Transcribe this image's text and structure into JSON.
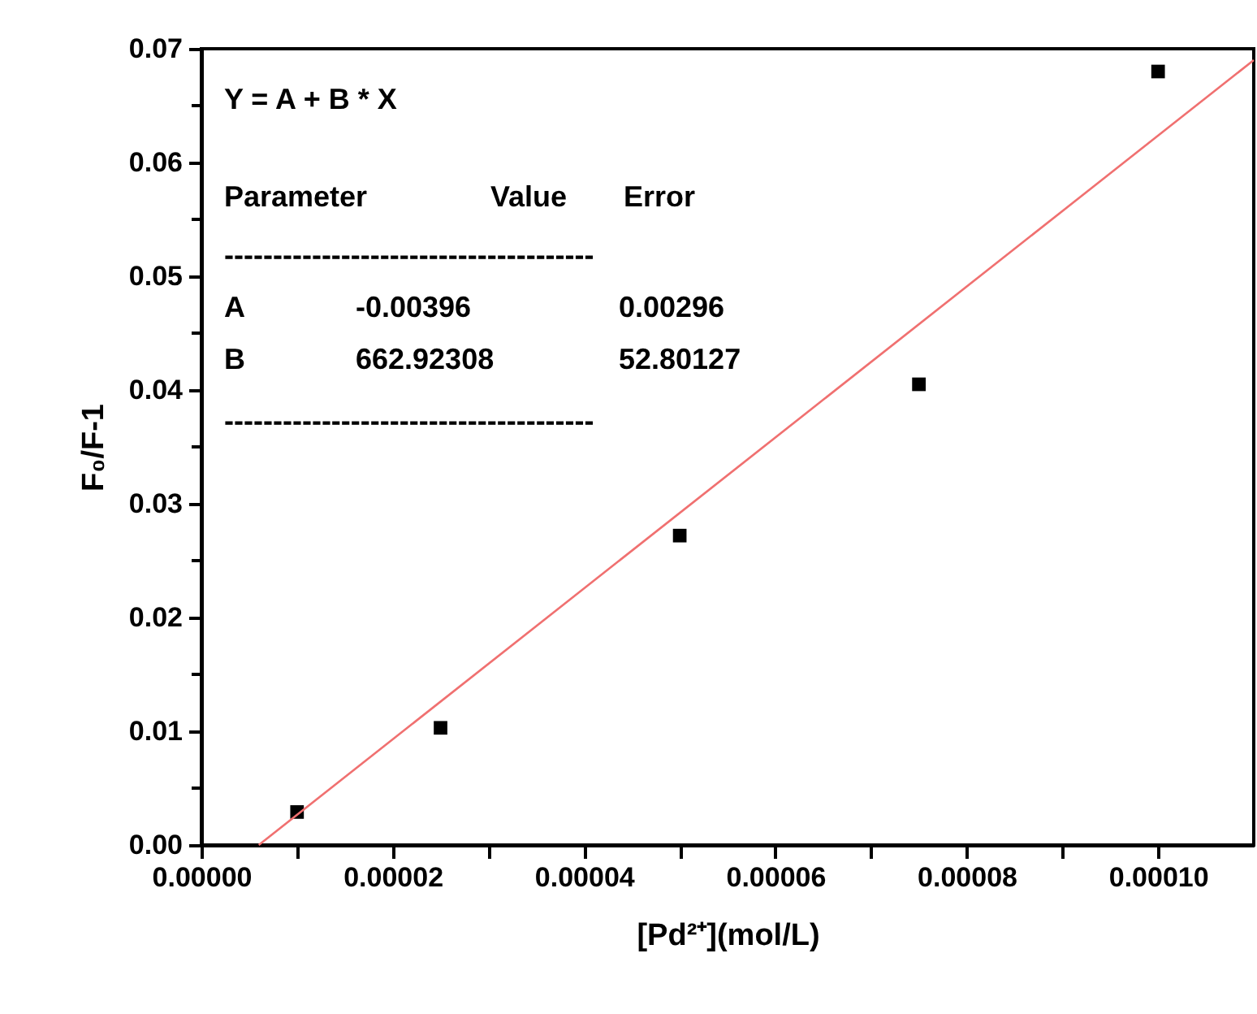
{
  "chart_data": {
    "type": "scatter",
    "xlabel": "[Pd²⁺](mol/L)",
    "ylabel": "F₀/F-1",
    "x": [
      1e-05,
      2.5e-05,
      5e-05,
      7.5e-05,
      0.0001
    ],
    "series": [
      {
        "color": "#000000",
        "marker": "square",
        "values": [
          0.0029,
          0.0103,
          0.0272,
          0.0405,
          0.068
        ]
      },
      {
        "type": "line",
        "color": "#f07070",
        "x": [
          6e-06,
          0.00011
        ],
        "values": [
          0.0,
          0.069
        ],
        "line_style": "solid",
        "marker": "none"
      }
    ],
    "xlim": [
      0,
      0.00011
    ],
    "ylim": [
      0,
      0.07
    ],
    "xticks": [
      {
        "value": 0,
        "label": "0.00000"
      },
      {
        "value": 1e-05,
        "label": null
      },
      {
        "value": 2e-05,
        "label": "0.00002"
      },
      {
        "value": 3e-05,
        "label": null
      },
      {
        "value": 4e-05,
        "label": "0.00004"
      },
      {
        "value": 5e-05,
        "label": null
      },
      {
        "value": 6e-05,
        "label": "0.00006"
      },
      {
        "value": 7e-05,
        "label": null
      },
      {
        "value": 8e-05,
        "label": "0.00008"
      },
      {
        "value": 9e-05,
        "label": null
      },
      {
        "value": 0.0001,
        "label": "0.00010"
      }
    ],
    "yticks": [
      {
        "value": 0,
        "label": "0.00"
      },
      {
        "value": 0.005,
        "label": null
      },
      {
        "value": 0.01,
        "label": "0.01"
      },
      {
        "value": 0.015,
        "label": null
      },
      {
        "value": 0.02,
        "label": "0.02"
      },
      {
        "value": 0.025,
        "label": null
      },
      {
        "value": 0.03,
        "label": "0.03"
      },
      {
        "value": 0.035,
        "label": null
      },
      {
        "value": 0.04,
        "label": "0.04"
      },
      {
        "value": 0.045,
        "label": null
      },
      {
        "value": 0.05,
        "label": "0.05"
      },
      {
        "value": 0.055,
        "label": null
      },
      {
        "value": 0.06,
        "label": "0.06"
      },
      {
        "value": 0.065,
        "label": null
      },
      {
        "value": 0.07,
        "label": "0.07"
      }
    ],
    "grid": false,
    "annotations": [
      "Y = A + B * X",
      "Parameter",
      "Value",
      "Error",
      "--------------------------------------",
      "A",
      "-0.00396",
      "0.00296",
      "B",
      "662.92308",
      "52.80127",
      "--------------------------------------"
    ]
  }
}
